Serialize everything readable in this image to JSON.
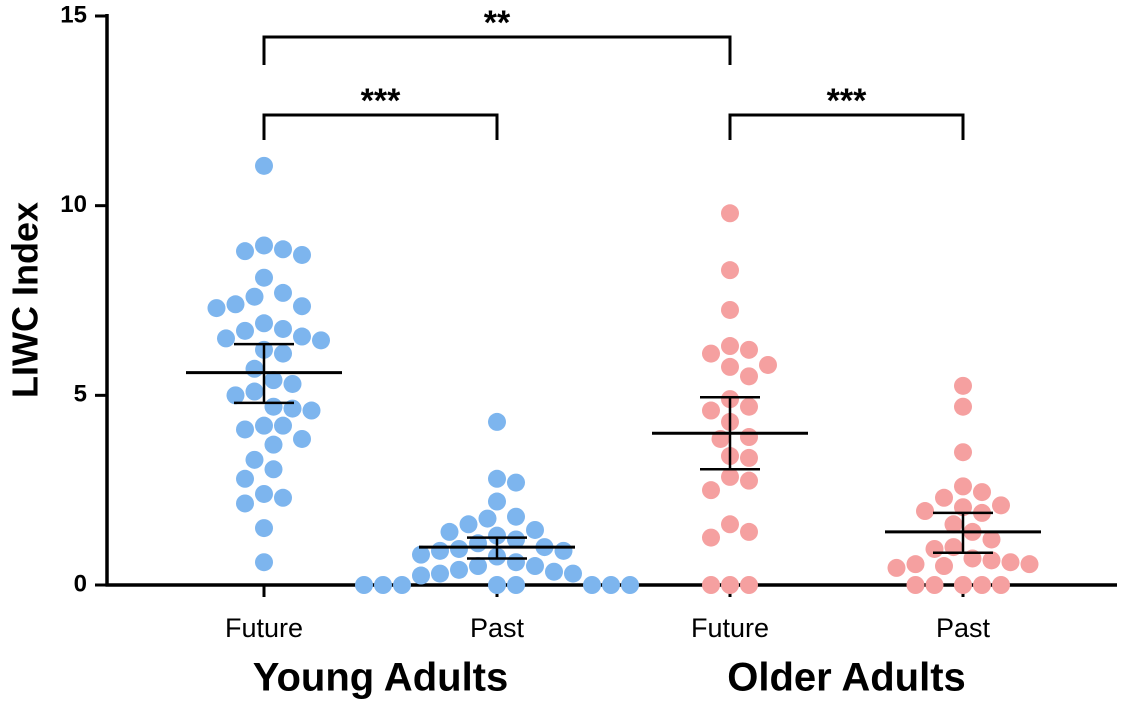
{
  "chart_data": {
    "type": "strip",
    "ylabel": "LIWC Index",
    "ylim": [
      0,
      15
    ],
    "yticks": [
      0,
      5,
      10,
      15
    ],
    "categories": [
      "Future",
      "Past",
      "Future",
      "Past"
    ],
    "groups": [
      {
        "label": "Young Adults",
        "span": [
          0,
          1
        ]
      },
      {
        "label": "Older Adults",
        "span": [
          2,
          3
        ]
      }
    ],
    "series": [
      {
        "color": "#7db5ee",
        "mean": 5.6,
        "error_low": 4.8,
        "error_high": 6.35,
        "values": [
          11.05,
          8.95,
          8.85,
          8.8,
          8.7,
          8.1,
          7.7,
          7.6,
          7.4,
          7.35,
          7.3,
          6.9,
          6.75,
          6.7,
          6.55,
          6.5,
          6.45,
          6.2,
          6.1,
          5.7,
          5.4,
          5.3,
          5.1,
          5.0,
          4.7,
          4.65,
          4.6,
          4.2,
          4.2,
          4.1,
          3.85,
          3.7,
          3.3,
          3.05,
          2.8,
          2.4,
          2.3,
          2.15,
          1.5,
          0.6
        ]
      },
      {
        "color": "#7db5ee",
        "mean": 1.0,
        "error_low": 0.7,
        "error_high": 1.25,
        "values": [
          4.3,
          2.8,
          2.7,
          2.2,
          1.8,
          1.75,
          1.6,
          1.45,
          1.4,
          1.3,
          1.2,
          1.1,
          1.0,
          0.95,
          0.9,
          0.9,
          0.8,
          0.75,
          0.6,
          0.5,
          0.5,
          0.4,
          0.35,
          0.3,
          0.3,
          0.25,
          0,
          0,
          0,
          0,
          0,
          0,
          0,
          0
        ]
      },
      {
        "color": "#f5a0a0",
        "mean": 4.0,
        "error_low": 3.05,
        "error_high": 4.95,
        "values": [
          9.8,
          8.3,
          7.25,
          6.3,
          6.2,
          6.1,
          5.8,
          5.75,
          5.5,
          4.9,
          4.7,
          4.6,
          4.3,
          3.9,
          3.85,
          3.4,
          3.35,
          2.85,
          2.75,
          2.5,
          1.6,
          1.4,
          1.25,
          0,
          0,
          0
        ]
      },
      {
        "color": "#f5a0a0",
        "mean": 1.4,
        "error_low": 0.85,
        "error_high": 1.9,
        "values": [
          5.25,
          4.7,
          3.5,
          2.6,
          2.45,
          2.3,
          2.1,
          2.05,
          1.95,
          1.9,
          1.6,
          1.4,
          1.2,
          1.0,
          0.95,
          0.7,
          0.65,
          0.6,
          0.55,
          0.55,
          0.5,
          0.45,
          0,
          0,
          0,
          0,
          0
        ]
      }
    ],
    "comparisons": [
      {
        "from": 0,
        "to": 2,
        "label": "**"
      },
      {
        "from": 0,
        "to": 1,
        "label": "***"
      },
      {
        "from": 2,
        "to": 3,
        "label": "***"
      }
    ]
  }
}
